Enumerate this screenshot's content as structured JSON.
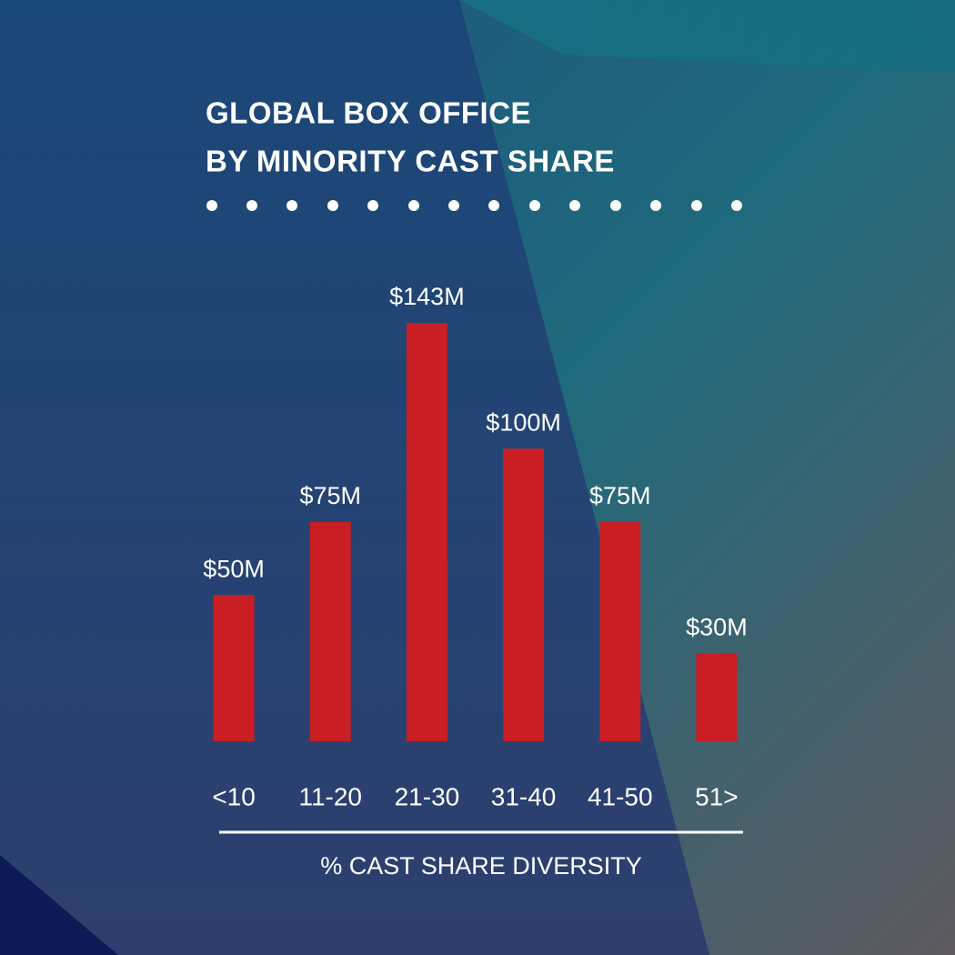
{
  "chart_data": {
    "type": "bar",
    "title": [
      "GLOBAL BOX OFFICE",
      "BY MINORITY CAST SHARE"
    ],
    "x_label": "% CAST SHARE DIVERSITY",
    "categories": [
      "<10",
      "11-20",
      "21-30",
      "31-40",
      "41-50",
      "51>"
    ],
    "values": [
      50,
      75,
      143,
      100,
      75,
      30
    ],
    "value_labels": [
      "$50M",
      "$75M",
      "$143M",
      "$100M",
      "$75M",
      "$30M"
    ],
    "color": "#c81e24"
  }
}
